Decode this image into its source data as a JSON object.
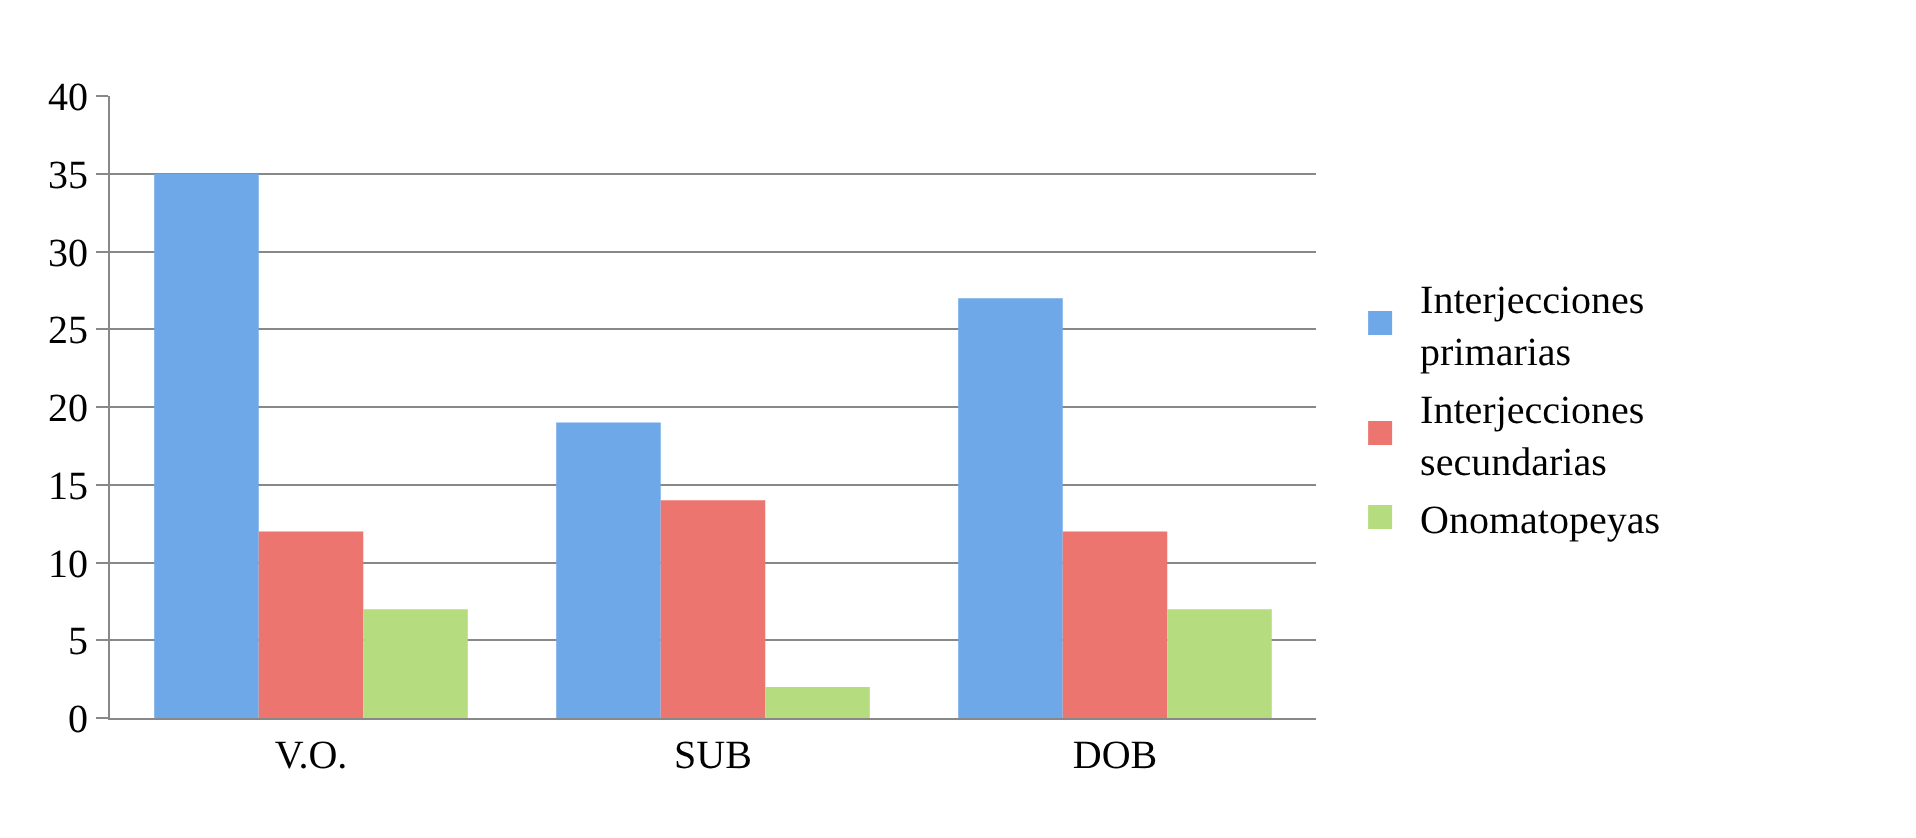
{
  "chart_data": {
    "type": "bar",
    "categories": [
      "V.O.",
      "SUB",
      "DOB"
    ],
    "series": [
      {
        "name": "Interjecciones primarias",
        "color": "#6fa8e8",
        "values": [
          35,
          19,
          27
        ]
      },
      {
        "name": "Interjecciones secundarias",
        "color": "#ec7570",
        "values": [
          12,
          14,
          12
        ]
      },
      {
        "name": "Onomatopeyas",
        "color": "#b5dc7e",
        "values": [
          7,
          2,
          7
        ]
      }
    ],
    "ylim": [
      0,
      40
    ],
    "yticks": [
      0,
      5,
      10,
      15,
      20,
      25,
      30,
      35,
      40
    ],
    "grid": "y",
    "legend": "right"
  }
}
